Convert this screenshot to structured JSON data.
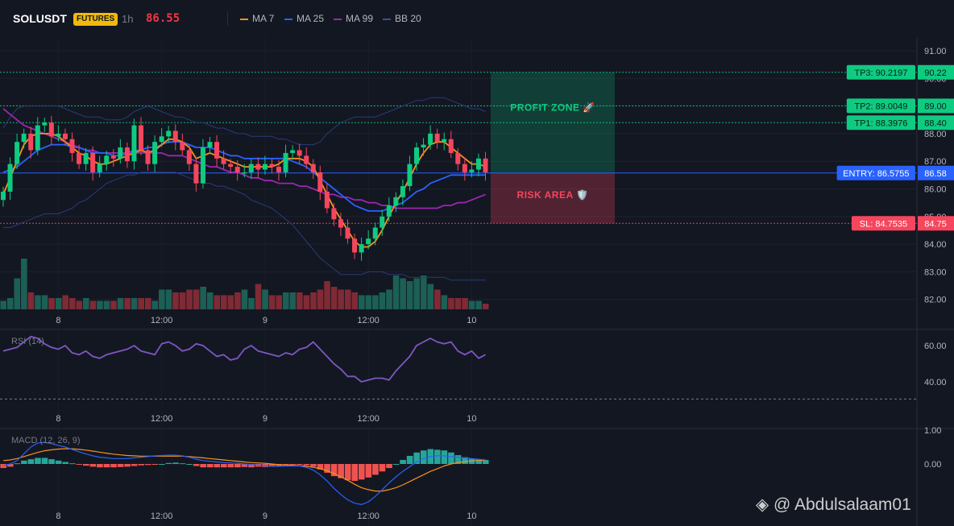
{
  "header": {
    "symbol": "SOLUSDT",
    "market_badge": "FUTURES",
    "timeframe": "1h",
    "last_price": "86.55",
    "legend": [
      {
        "label": "MA 7",
        "color": "#f7931a"
      },
      {
        "label": "MA 25",
        "color": "#2962ff"
      },
      {
        "label": "MA 99",
        "color": "#9c27b0"
      },
      {
        "label": "BB 20",
        "color": "#1e3a8a"
      }
    ]
  },
  "colors": {
    "up": "#26a69a",
    "up_bright": "#0ecb81",
    "down": "#f6465d",
    "volume_up": "#1c5f55",
    "volume_down": "#7f2a35"
  },
  "chart_data": [
    {
      "type": "candlestick",
      "y_ticks": [
        91.0,
        90.0,
        89.0,
        88.0,
        87.0,
        86.0,
        85.0,
        84.0,
        83.0,
        82.0
      ],
      "ylim": [
        81.6,
        91.5
      ],
      "x_tick_labels": [
        "8",
        "12:00",
        "9",
        "12:00",
        "10"
      ],
      "x_tick_candle_index": [
        8,
        23,
        38,
        53,
        68
      ],
      "closes": [
        85.9,
        86.9,
        87.7,
        88.0,
        87.4,
        88.3,
        88.4,
        87.9,
        88.0,
        87.8,
        87.3,
        86.9,
        87.3,
        86.6,
        86.9,
        87.2,
        87.1,
        87.5,
        87.0,
        88.3,
        87.4,
        86.9,
        87.7,
        87.9,
        88.1,
        87.7,
        87.4,
        86.9,
        86.2,
        87.5,
        87.7,
        87.1,
        86.9,
        86.8,
        86.6,
        86.6,
        86.9,
        86.7,
        86.9,
        86.8,
        86.6,
        87.3,
        87.4,
        87.2,
        86.9,
        86.6,
        85.9,
        85.3,
        84.9,
        84.6,
        84.2,
        83.7,
        84.0,
        84.2,
        84.6,
        85.0,
        85.4,
        85.7,
        86.1,
        86.9,
        87.5,
        87.6,
        88.0,
        87.7,
        87.8,
        87.3,
        86.9,
        86.6,
        86.7,
        87.1,
        86.6
      ],
      "volume_ratio": [
        0.15,
        0.2,
        0.55,
        0.9,
        0.3,
        0.25,
        0.25,
        0.2,
        0.2,
        0.25,
        0.2,
        0.15,
        0.2,
        0.15,
        0.15,
        0.15,
        0.15,
        0.2,
        0.2,
        0.2,
        0.2,
        0.2,
        0.15,
        0.35,
        0.35,
        0.3,
        0.3,
        0.35,
        0.35,
        0.4,
        0.3,
        0.25,
        0.25,
        0.25,
        0.3,
        0.35,
        0.2,
        0.45,
        0.35,
        0.25,
        0.25,
        0.3,
        0.3,
        0.3,
        0.25,
        0.3,
        0.35,
        0.5,
        0.4,
        0.35,
        0.35,
        0.3,
        0.25,
        0.25,
        0.25,
        0.3,
        0.35,
        0.6,
        0.55,
        0.5,
        0.55,
        0.6,
        0.45,
        0.35,
        0.25,
        0.2,
        0.2,
        0.2,
        0.15,
        0.15,
        0.1
      ],
      "ma7": [
        85.8,
        86.4,
        87.0,
        87.6,
        87.9,
        88.0,
        88.0,
        88.0,
        87.9,
        87.7,
        87.5,
        87.3,
        87.2,
        87.0,
        86.9,
        86.9,
        87.0,
        87.1,
        87.2,
        87.3,
        87.4,
        87.3,
        87.4,
        87.6,
        87.8,
        87.8,
        87.7,
        87.5,
        87.1,
        87.2,
        87.3,
        87.2,
        87.1,
        87.0,
        86.9,
        86.8,
        86.8,
        86.8,
        86.8,
        86.8,
        86.9,
        87.1,
        87.1,
        87.1,
        87.0,
        86.8,
        86.3,
        85.8,
        85.3,
        84.9,
        84.5,
        84.1,
        83.9,
        83.9,
        84.1,
        84.5,
        85.0,
        85.5,
        85.9,
        86.4,
        86.9,
        87.3,
        87.6,
        87.7,
        87.7,
        87.5,
        87.3,
        87.1,
        86.9,
        86.9,
        86.8
      ],
      "ma25": [
        86.6,
        86.7,
        86.8,
        87.0,
        87.2,
        87.4,
        87.5,
        87.6,
        87.6,
        87.6,
        87.5,
        87.5,
        87.4,
        87.3,
        87.3,
        87.3,
        87.2,
        87.2,
        87.3,
        87.4,
        87.4,
        87.5,
        87.5,
        87.6,
        87.7,
        87.7,
        87.7,
        87.6,
        87.5,
        87.5,
        87.5,
        87.4,
        87.3,
        87.2,
        87.2,
        87.1,
        87.1,
        87.1,
        87.1,
        87.1,
        87.1,
        87.1,
        87.0,
        86.9,
        86.8,
        86.6,
        86.4,
        86.2,
        86.0,
        85.8,
        85.6,
        85.4,
        85.3,
        85.2,
        85.2,
        85.2,
        85.3,
        85.4,
        85.5,
        85.7,
        85.9,
        86.0,
        86.2,
        86.3,
        86.4,
        86.5,
        86.5,
        86.5,
        86.5,
        86.5,
        86.5
      ],
      "ma99": [
        88.9,
        88.7,
        88.5,
        88.3,
        88.2,
        88.1,
        88.0,
        87.9,
        87.8,
        87.7,
        87.6,
        87.5,
        87.4,
        87.4,
        87.3,
        87.3,
        87.3,
        87.3,
        87.3,
        87.3,
        87.3,
        87.3,
        87.3,
        87.3,
        87.2,
        87.2,
        87.2,
        87.1,
        87.0,
        86.9,
        86.8,
        86.8,
        86.7,
        86.6,
        86.6,
        86.5,
        86.4,
        86.4,
        86.3,
        86.3,
        86.2,
        86.2,
        86.2,
        86.1,
        86.1,
        86.0,
        85.9,
        85.8,
        85.8,
        85.7,
        85.7,
        85.6,
        85.6,
        85.5,
        85.5,
        85.4,
        85.4,
        85.3,
        85.3,
        85.3,
        85.3,
        85.3,
        85.3,
        85.3,
        85.4,
        85.4,
        85.5,
        85.5,
        85.6,
        85.7,
        85.8
      ],
      "bb_upper": [
        88.2,
        88.6,
        88.9,
        89.0,
        89.0,
        89.0,
        89.0,
        89.0,
        89.0,
        88.9,
        88.8,
        88.7,
        88.6,
        88.6,
        88.6,
        88.5,
        88.5,
        88.5,
        88.6,
        88.8,
        88.9,
        89.0,
        88.9,
        88.8,
        88.7,
        88.6,
        88.6,
        88.5,
        88.4,
        88.4,
        88.3,
        88.2,
        88.2,
        88.1,
        88.0,
        88.0,
        87.9,
        87.9,
        87.9,
        87.9,
        87.8,
        87.8,
        87.7,
        87.6,
        87.6,
        87.6,
        87.7,
        88.0,
        88.2,
        88.4,
        88.5,
        88.6,
        88.6,
        88.6,
        88.6,
        88.7,
        88.8,
        88.9,
        89.0,
        89.1,
        89.2,
        89.2,
        89.3,
        89.3,
        89.3,
        89.2,
        89.1,
        89.0,
        88.9,
        88.9,
        88.8
      ],
      "bb_lower": [
        84.6,
        84.6,
        84.7,
        84.8,
        84.9,
        85.0,
        85.1,
        85.1,
        85.1,
        85.2,
        85.3,
        85.5,
        85.6,
        85.8,
        86.0,
        86.2,
        86.3,
        86.4,
        86.5,
        86.5,
        86.6,
        86.6,
        86.6,
        86.6,
        86.6,
        86.6,
        86.5,
        86.4,
        86.3,
        86.2,
        86.2,
        86.1,
        86.1,
        86.0,
        85.9,
        85.8,
        85.6,
        85.5,
        85.4,
        85.3,
        85.1,
        84.9,
        84.7,
        84.4,
        84.1,
        83.8,
        83.5,
        83.3,
        83.1,
        82.9,
        82.9,
        82.9,
        82.9,
        83.0,
        83.0,
        83.0,
        82.9,
        82.9,
        82.9,
        82.8,
        82.8,
        82.8,
        82.8,
        82.8,
        82.8,
        82.7,
        82.7,
        82.7,
        82.7,
        82.7,
        82.7
      ],
      "annotations": {
        "tp3": {
          "tag": "TP3: 90.2197",
          "price_label": "90.22",
          "value": 90.2197
        },
        "tp2": {
          "tag": "TP2: 89.0049",
          "price_label": "89.00",
          "value": 89.0049
        },
        "tp1": {
          "tag": "TP1: 88.3976",
          "price_label": "88.40",
          "value": 88.3976
        },
        "entry": {
          "tag": "ENTRY: 86.5755",
          "price_label": "86.58",
          "value": 86.5755
        },
        "sl": {
          "tag": "SL: 84.7535",
          "price_label": "84.75",
          "value": 84.7535
        },
        "profit_zone_label": "PROFIT ZONE 🚀",
        "risk_area_label": "RISK AREA 🛡️"
      }
    },
    {
      "type": "line",
      "title": "RSI (14)",
      "y_ticks": [
        60.0,
        40.0
      ],
      "ylim": [
        29.5,
        66
      ],
      "reference_line": 30.5,
      "values": [
        57,
        58,
        59,
        62,
        65,
        64,
        61,
        59,
        58,
        60,
        56,
        55,
        57,
        54,
        53,
        55,
        56,
        57,
        58,
        60,
        57,
        56,
        55,
        61,
        62,
        60,
        57,
        58,
        61,
        60,
        57,
        54,
        55,
        52,
        53,
        58,
        60,
        57,
        56,
        55,
        54,
        56,
        55,
        58,
        59,
        62,
        58,
        54,
        50,
        47,
        43,
        43,
        40,
        41,
        42,
        42,
        41,
        46,
        50,
        54,
        60,
        62,
        64,
        62,
        61,
        62,
        57,
        55,
        57,
        53,
        55
      ]
    },
    {
      "type": "bar+line",
      "title": "MACD (12, 26, 9)",
      "y_ticks": [
        1.0,
        0.0
      ],
      "ylim": [
        -1.55,
        1.2
      ],
      "histogram": [
        -0.12,
        -0.08,
        0.02,
        0.1,
        0.14,
        0.18,
        0.18,
        0.14,
        0.1,
        0.06,
        0.02,
        -0.02,
        -0.05,
        -0.08,
        -0.1,
        -0.1,
        -0.1,
        -0.09,
        -0.08,
        -0.06,
        -0.04,
        -0.03,
        -0.02,
        0.0,
        0.03,
        0.04,
        0.02,
        0.0,
        -0.06,
        -0.1,
        -0.1,
        -0.1,
        -0.1,
        -0.1,
        -0.1,
        -0.09,
        -0.1,
        -0.08,
        -0.09,
        -0.08,
        -0.06,
        -0.04,
        -0.02,
        -0.02,
        -0.04,
        -0.08,
        -0.16,
        -0.26,
        -0.36,
        -0.42,
        -0.48,
        -0.5,
        -0.46,
        -0.4,
        -0.32,
        -0.22,
        -0.12,
        0.0,
        0.12,
        0.24,
        0.34,
        0.4,
        0.44,
        0.42,
        0.4,
        0.34,
        0.26,
        0.2,
        0.16,
        0.14,
        0.12
      ],
      "macd": [
        -0.05,
        0.0,
        0.1,
        0.3,
        0.5,
        0.62,
        0.64,
        0.6,
        0.55,
        0.5,
        0.43,
        0.36,
        0.3,
        0.24,
        0.2,
        0.18,
        0.16,
        0.16,
        0.16,
        0.18,
        0.2,
        0.22,
        0.24,
        0.25,
        0.26,
        0.26,
        0.24,
        0.2,
        0.14,
        0.1,
        0.08,
        0.06,
        0.04,
        0.03,
        0.02,
        0.0,
        -0.02,
        -0.03,
        -0.05,
        -0.06,
        -0.07,
        -0.06,
        -0.06,
        -0.06,
        -0.1,
        -0.18,
        -0.32,
        -0.5,
        -0.72,
        -0.9,
        -1.06,
        -1.16,
        -1.2,
        -1.12,
        -0.96,
        -0.76,
        -0.56,
        -0.38,
        -0.22,
        -0.08,
        0.06,
        0.16,
        0.22,
        0.24,
        0.24,
        0.22,
        0.2,
        0.18,
        0.16,
        0.14,
        0.12
      ],
      "signal": [
        0.1,
        0.12,
        0.16,
        0.22,
        0.28,
        0.34,
        0.39,
        0.42,
        0.44,
        0.45,
        0.45,
        0.43,
        0.41,
        0.38,
        0.35,
        0.32,
        0.29,
        0.27,
        0.25,
        0.24,
        0.23,
        0.23,
        0.23,
        0.23,
        0.23,
        0.23,
        0.23,
        0.22,
        0.2,
        0.18,
        0.16,
        0.14,
        0.12,
        0.1,
        0.08,
        0.06,
        0.04,
        0.03,
        0.02,
        0.0,
        -0.02,
        -0.03,
        -0.04,
        -0.05,
        -0.07,
        -0.1,
        -0.14,
        -0.2,
        -0.28,
        -0.38,
        -0.48,
        -0.6,
        -0.7,
        -0.76,
        -0.8,
        -0.8,
        -0.76,
        -0.7,
        -0.62,
        -0.52,
        -0.42,
        -0.32,
        -0.22,
        -0.14,
        -0.06,
        0.0,
        0.04,
        0.07,
        0.09,
        0.1,
        0.11
      ]
    }
  ],
  "watermark": "@ Abdulsalaam01"
}
